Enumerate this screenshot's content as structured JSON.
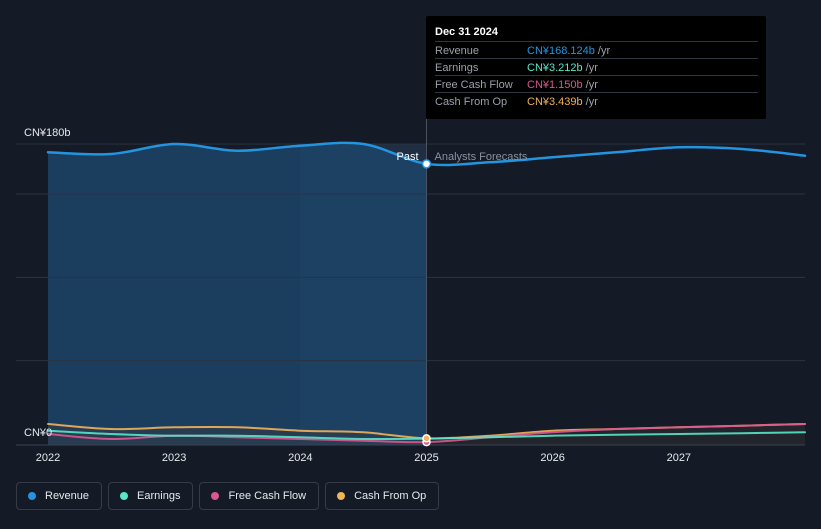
{
  "chart_data": {
    "type": "line",
    "y_axis": {
      "top_label": "CN¥180b",
      "bottom_label": "CN¥0",
      "ylim": [
        0,
        180
      ]
    },
    "x_axis": {
      "ticks": [
        "2022",
        "2023",
        "2024",
        "2025",
        "2026",
        "2027"
      ],
      "range": [
        2022,
        2028
      ]
    },
    "divider": {
      "x": 2025,
      "past_label": "Past",
      "forecast_label": "Analysts Forecasts"
    },
    "series": [
      {
        "name": "Revenue",
        "color": "#2394df",
        "x": [
          2022.0,
          2022.5,
          2023.0,
          2023.5,
          2024.0,
          2024.5,
          2025.0,
          2025.5,
          2026.0,
          2026.5,
          2027.0,
          2027.5,
          2028.0
        ],
        "y": [
          175,
          174,
          180,
          176,
          179,
          180,
          168.1,
          169,
          172,
          175,
          178,
          177,
          173
        ]
      },
      {
        "name": "Earnings",
        "color": "#58e6c9",
        "x": [
          2022.0,
          2022.5,
          2023.0,
          2023.5,
          2024.0,
          2024.5,
          2025.0,
          2025.5,
          2026.0,
          2026.5,
          2027.0,
          2027.5,
          2028.0
        ],
        "y": [
          8,
          6,
          5,
          5,
          4,
          3,
          3.2,
          4,
          5,
          5.5,
          6,
          6.5,
          7
        ]
      },
      {
        "name": "Free Cash Flow",
        "color": "#d9588f",
        "x": [
          2022.0,
          2022.5,
          2023.0,
          2023.5,
          2024.0,
          2024.5,
          2025.0,
          2025.5,
          2026.0,
          2026.5,
          2027.0,
          2027.5,
          2028.0
        ],
        "y": [
          6,
          3,
          5,
          4,
          3,
          2,
          1.15,
          4,
          7,
          9,
          10,
          11,
          12
        ]
      },
      {
        "name": "Cash From Op",
        "color": "#f2b35a",
        "x": [
          2022.0,
          2022.5,
          2023.0,
          2023.5,
          2024.0,
          2024.5,
          2025.0,
          2025.5,
          2026.0,
          2026.5,
          2027.0,
          2027.5,
          2028.0
        ],
        "y": [
          12,
          9,
          10,
          10,
          8,
          7,
          3.4,
          5,
          8,
          9,
          10,
          11,
          12
        ]
      }
    ],
    "highlight": {
      "x": 2025
    },
    "grid": true,
    "legend_position": "bottom-left"
  },
  "tooltip": {
    "date": "Dec 31 2024",
    "rows": [
      {
        "label": "Revenue",
        "value": "CN¥168.124b",
        "unit": "/yr",
        "color": "#2394df"
      },
      {
        "label": "Earnings",
        "value": "CN¥3.212b",
        "unit": "/yr",
        "color": "#58e6c9"
      },
      {
        "label": "Free Cash Flow",
        "value": "CN¥1.150b",
        "unit": "/yr",
        "color": "#d9588f"
      },
      {
        "label": "Cash From Op",
        "value": "CN¥3.439b",
        "unit": "/yr",
        "color": "#f2b35a"
      }
    ]
  },
  "legend": [
    {
      "label": "Revenue",
      "color": "#2394df"
    },
    {
      "label": "Earnings",
      "color": "#58e6c9"
    },
    {
      "label": "Free Cash Flow",
      "color": "#d9588f"
    },
    {
      "label": "Cash From Op",
      "color": "#f2b35a"
    }
  ]
}
